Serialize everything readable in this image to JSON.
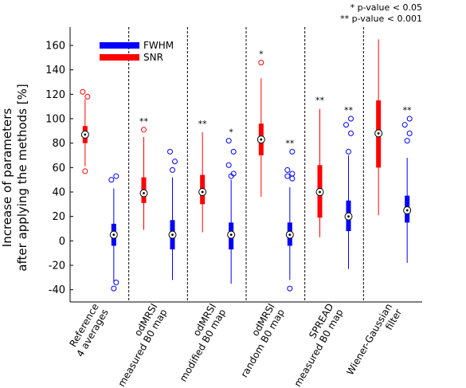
{
  "chart_data": {
    "type": "box",
    "title": "",
    "xlabel": "",
    "ylabel_lines": [
      "Increase of parameters",
      "after applying the methods [%]"
    ],
    "ylim": [
      -50,
      175
    ],
    "yticks": [
      -40,
      -20,
      0,
      20,
      40,
      60,
      80,
      100,
      120,
      140,
      160
    ],
    "grid": false,
    "legend_position": "top-left",
    "notes": [
      "* p-value < 0.05",
      "** p-value < 0.001"
    ],
    "legend": [
      {
        "name": "FWHM",
        "color": "#0000ff"
      },
      {
        "name": "SNR",
        "color": "#ff0000"
      }
    ],
    "categories": [
      [
        "Reference",
        "4 averages"
      ],
      [
        "odMRSI",
        "measured B0 map"
      ],
      [
        "odMRSI",
        "modified B0 map"
      ],
      [
        "odMRSI",
        "random B0 map"
      ],
      [
        "SPREAD",
        "measured B0 map"
      ],
      [
        "Wiener-Gaussian",
        "filter"
      ]
    ],
    "series": [
      {
        "name": "SNR",
        "color": "#ff0000",
        "boxes": [
          {
            "whisker_low": 61,
            "q1": 80,
            "median": 87,
            "q3": 94,
            "whisker_high": 116,
            "outliers": [
              57,
              118,
              122
            ],
            "sig": ""
          },
          {
            "whisker_low": 9,
            "q1": 31,
            "median": 39,
            "q3": 52,
            "whisker_high": 85,
            "outliers": [
              91
            ],
            "sig": "**"
          },
          {
            "whisker_low": 7,
            "q1": 30,
            "median": 40,
            "q3": 54,
            "whisker_high": 89,
            "outliers": [],
            "sig": "**"
          },
          {
            "whisker_low": 36,
            "q1": 70,
            "median": 83,
            "q3": 96,
            "whisker_high": 133,
            "outliers": [
              146
            ],
            "sig": "*"
          },
          {
            "whisker_low": 3,
            "q1": 19,
            "median": 40,
            "q3": 62,
            "whisker_high": 108,
            "outliers": [],
            "sig": "**"
          },
          {
            "whisker_low": 21,
            "q1": 60,
            "median": 88,
            "q3": 115,
            "whisker_high": 165,
            "outliers": [],
            "sig": ""
          }
        ]
      },
      {
        "name": "FWHM",
        "color": "#0000ff",
        "boxes": [
          {
            "whisker_low": -34,
            "q1": -4,
            "median": 5,
            "q3": 14,
            "whisker_high": 43,
            "outliers": [
              -39,
              -34,
              50,
              53
            ],
            "sig": ""
          },
          {
            "whisker_low": -32,
            "q1": -7,
            "median": 5,
            "q3": 17,
            "whisker_high": 52,
            "outliers": [
              58,
              65,
              73
            ],
            "sig": ""
          },
          {
            "whisker_low": -35,
            "q1": -7,
            "median": 5,
            "q3": 15,
            "whisker_high": 50,
            "outliers": [
              53,
              55,
              62,
              73,
              82
            ],
            "sig": "*"
          },
          {
            "whisker_low": -32,
            "q1": -4,
            "median": 5,
            "q3": 15,
            "whisker_high": 44,
            "outliers": [
              -39,
              51,
              53,
              55,
              58,
              73
            ],
            "sig": "**"
          },
          {
            "whisker_low": -23,
            "q1": 8,
            "median": 20,
            "q3": 33,
            "whisker_high": 70,
            "outliers": [
              73,
              88,
              95,
              100
            ],
            "sig": "**"
          },
          {
            "whisker_low": -18,
            "q1": 15,
            "median": 25,
            "q3": 37,
            "whisker_high": 68,
            "outliers": [
              82,
              88,
              95,
              100
            ],
            "sig": "**"
          }
        ]
      }
    ]
  }
}
